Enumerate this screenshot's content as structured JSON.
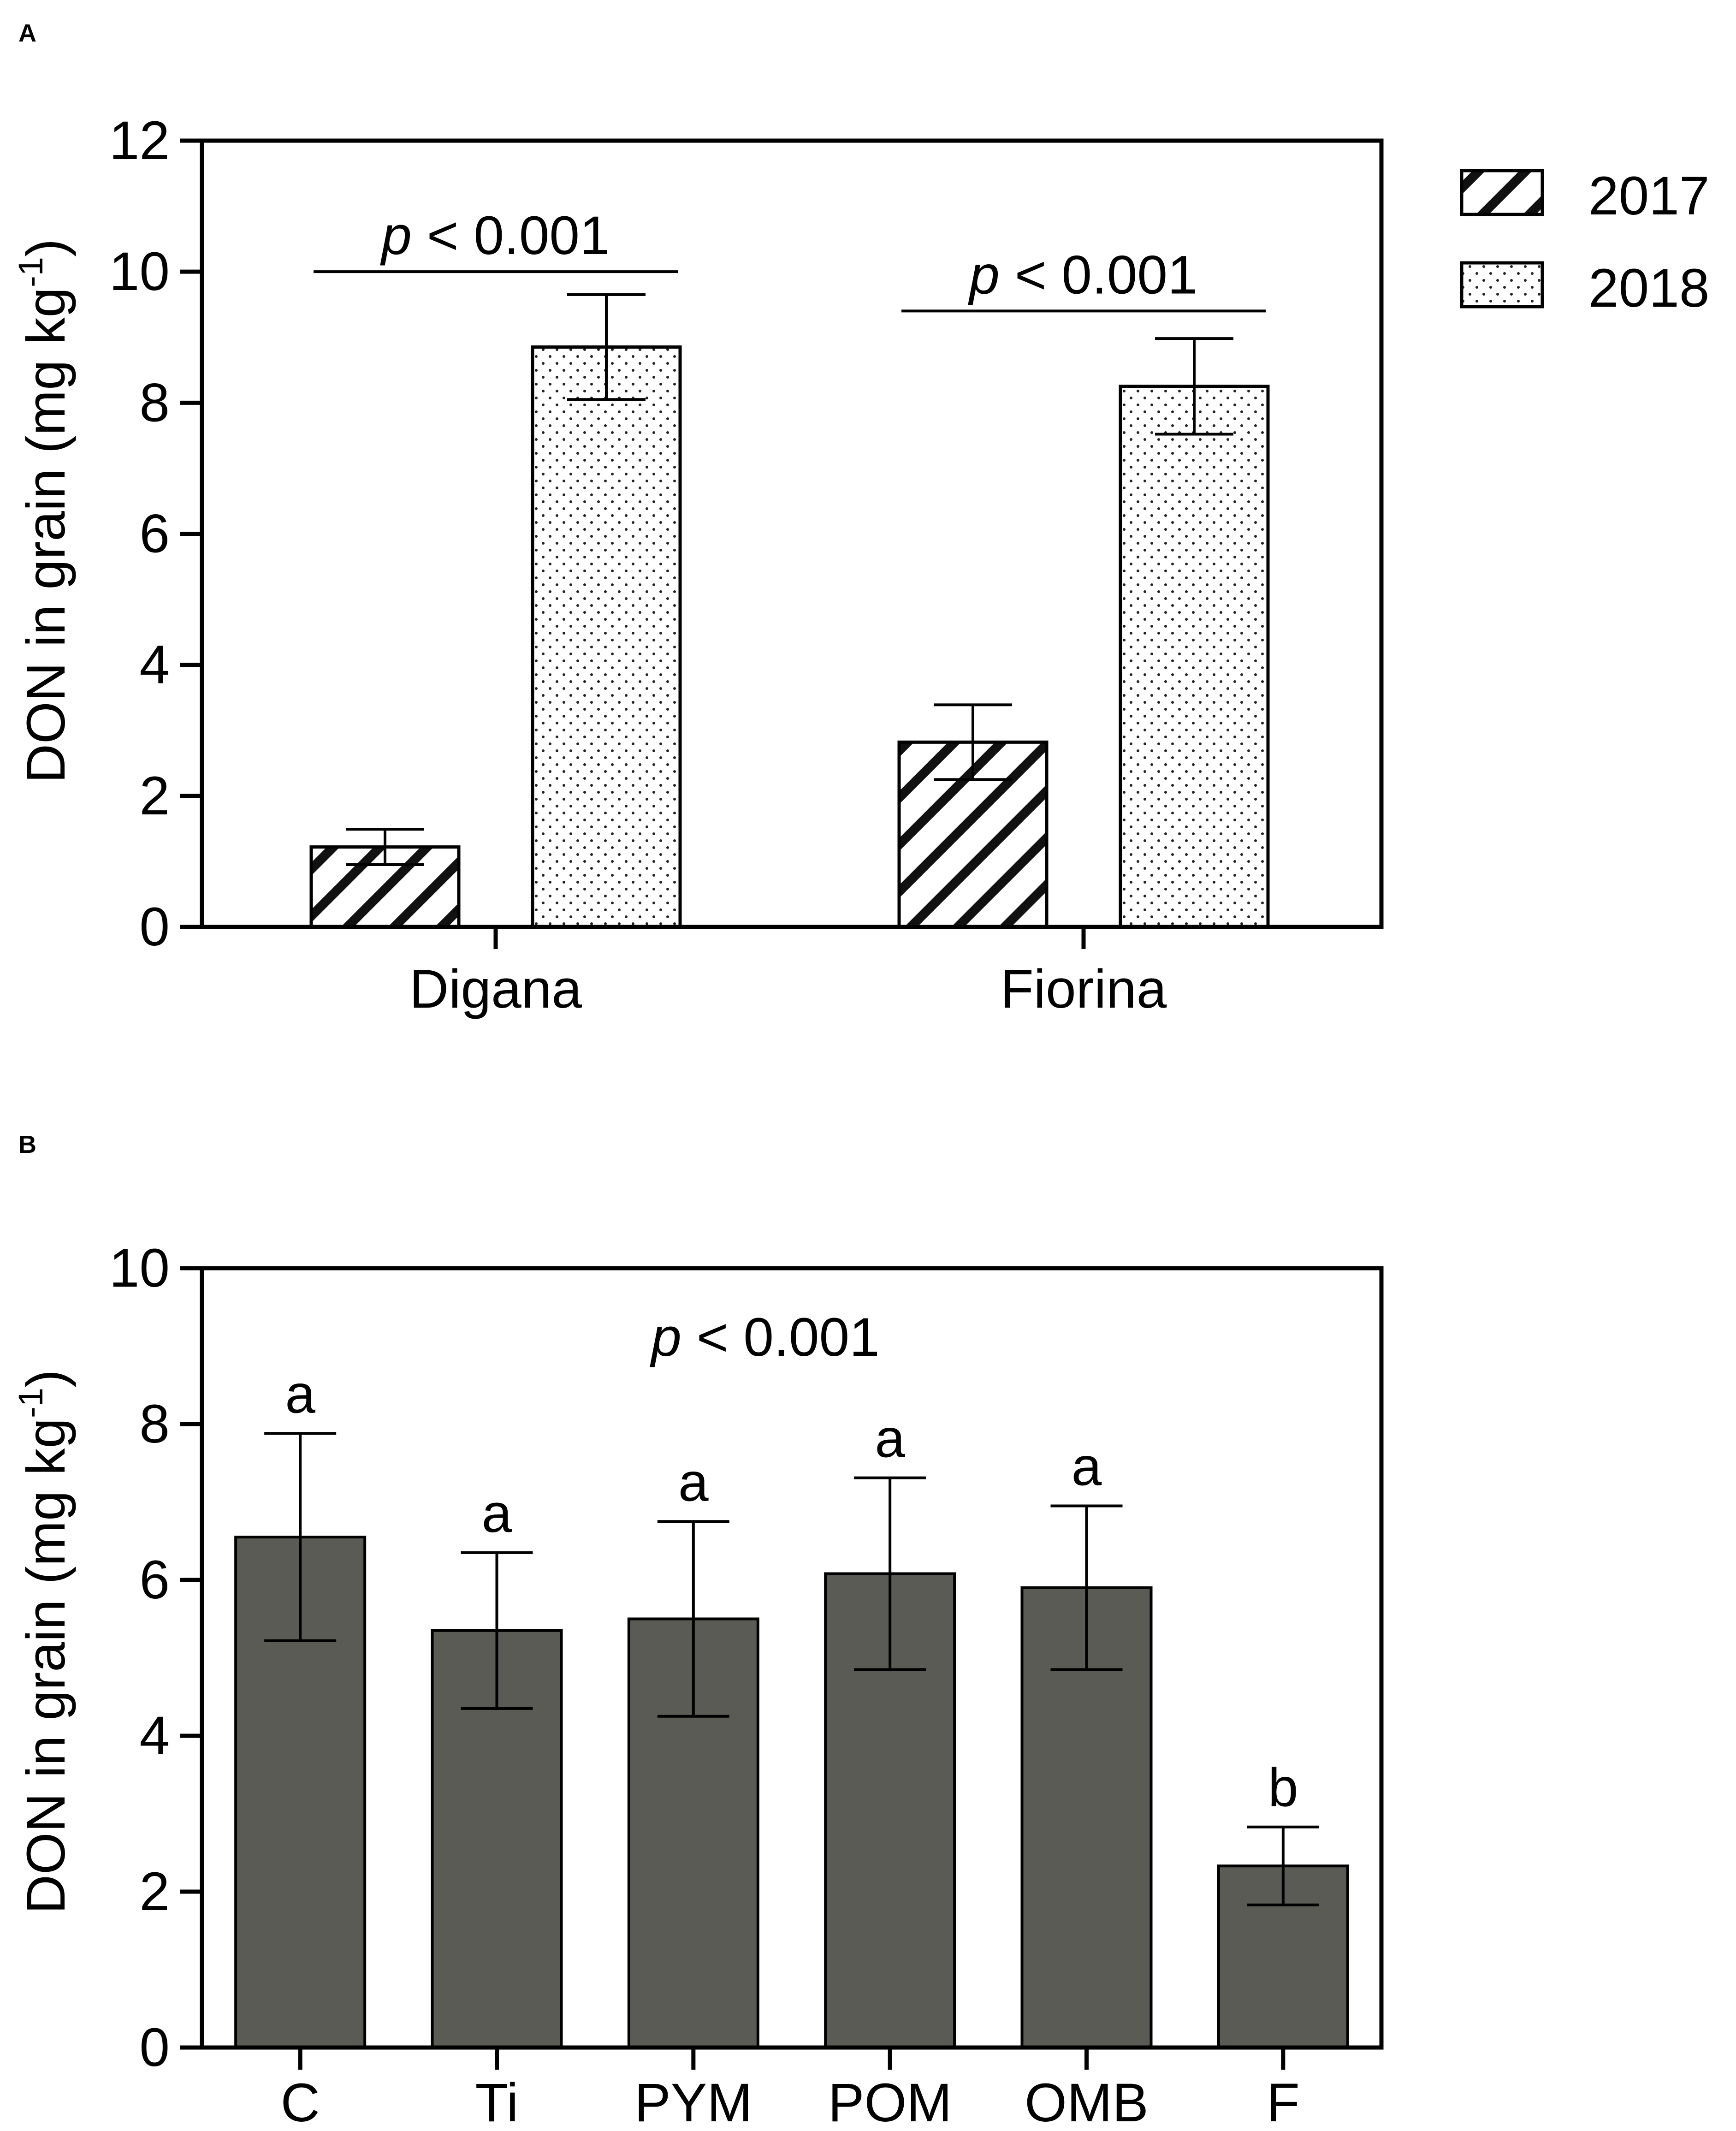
{
  "chart_data": [
    {
      "panel": "A",
      "type": "bar",
      "categories": [
        "Digana",
        "Fiorina"
      ],
      "series": [
        {
          "name": "2017",
          "values": [
            1.22,
            2.82
          ],
          "errors": [
            0.27,
            0.57
          ]
        },
        {
          "name": "2018",
          "values": [
            8.85,
            8.25
          ],
          "errors": [
            0.8,
            0.73
          ]
        }
      ],
      "ylabel": "DON in grain (mg kg",
      "ylabel_sup": "-1",
      "ylabel_close": ")",
      "ylim": [
        0,
        12
      ],
      "yticks": [
        "0",
        "2",
        "4",
        "6",
        "8",
        "10",
        "12"
      ],
      "annotations": [
        {
          "category": "Digana",
          "text": "< 0.001",
          "prefix": "p",
          "level": 10
        },
        {
          "category": "Fiorina",
          "text": "< 0.001",
          "prefix": "p",
          "level": 9.4
        }
      ],
      "legend": "top-right"
    },
    {
      "panel": "B",
      "type": "bar",
      "categories": [
        "C",
        "Ti",
        "PYM",
        "POM",
        "OMB",
        "F"
      ],
      "values": [
        6.55,
        5.35,
        5.5,
        6.08,
        5.9,
        2.33
      ],
      "errors": [
        1.33,
        1.0,
        1.25,
        1.23,
        1.05,
        0.5
      ],
      "letters": [
        "a",
        "a",
        "a",
        "a",
        "a",
        "b"
      ],
      "ylabel": "DON in grain (mg kg",
      "ylabel_sup": "-1",
      "ylabel_close": ")",
      "ylim": [
        0,
        10
      ],
      "yticks": [
        "0",
        "2",
        "4",
        "6",
        "8",
        "10"
      ],
      "annotation": {
        "prefix": "p",
        "text": "< 0.001"
      },
      "colors": {
        "bar": "#5a5b55"
      }
    }
  ]
}
